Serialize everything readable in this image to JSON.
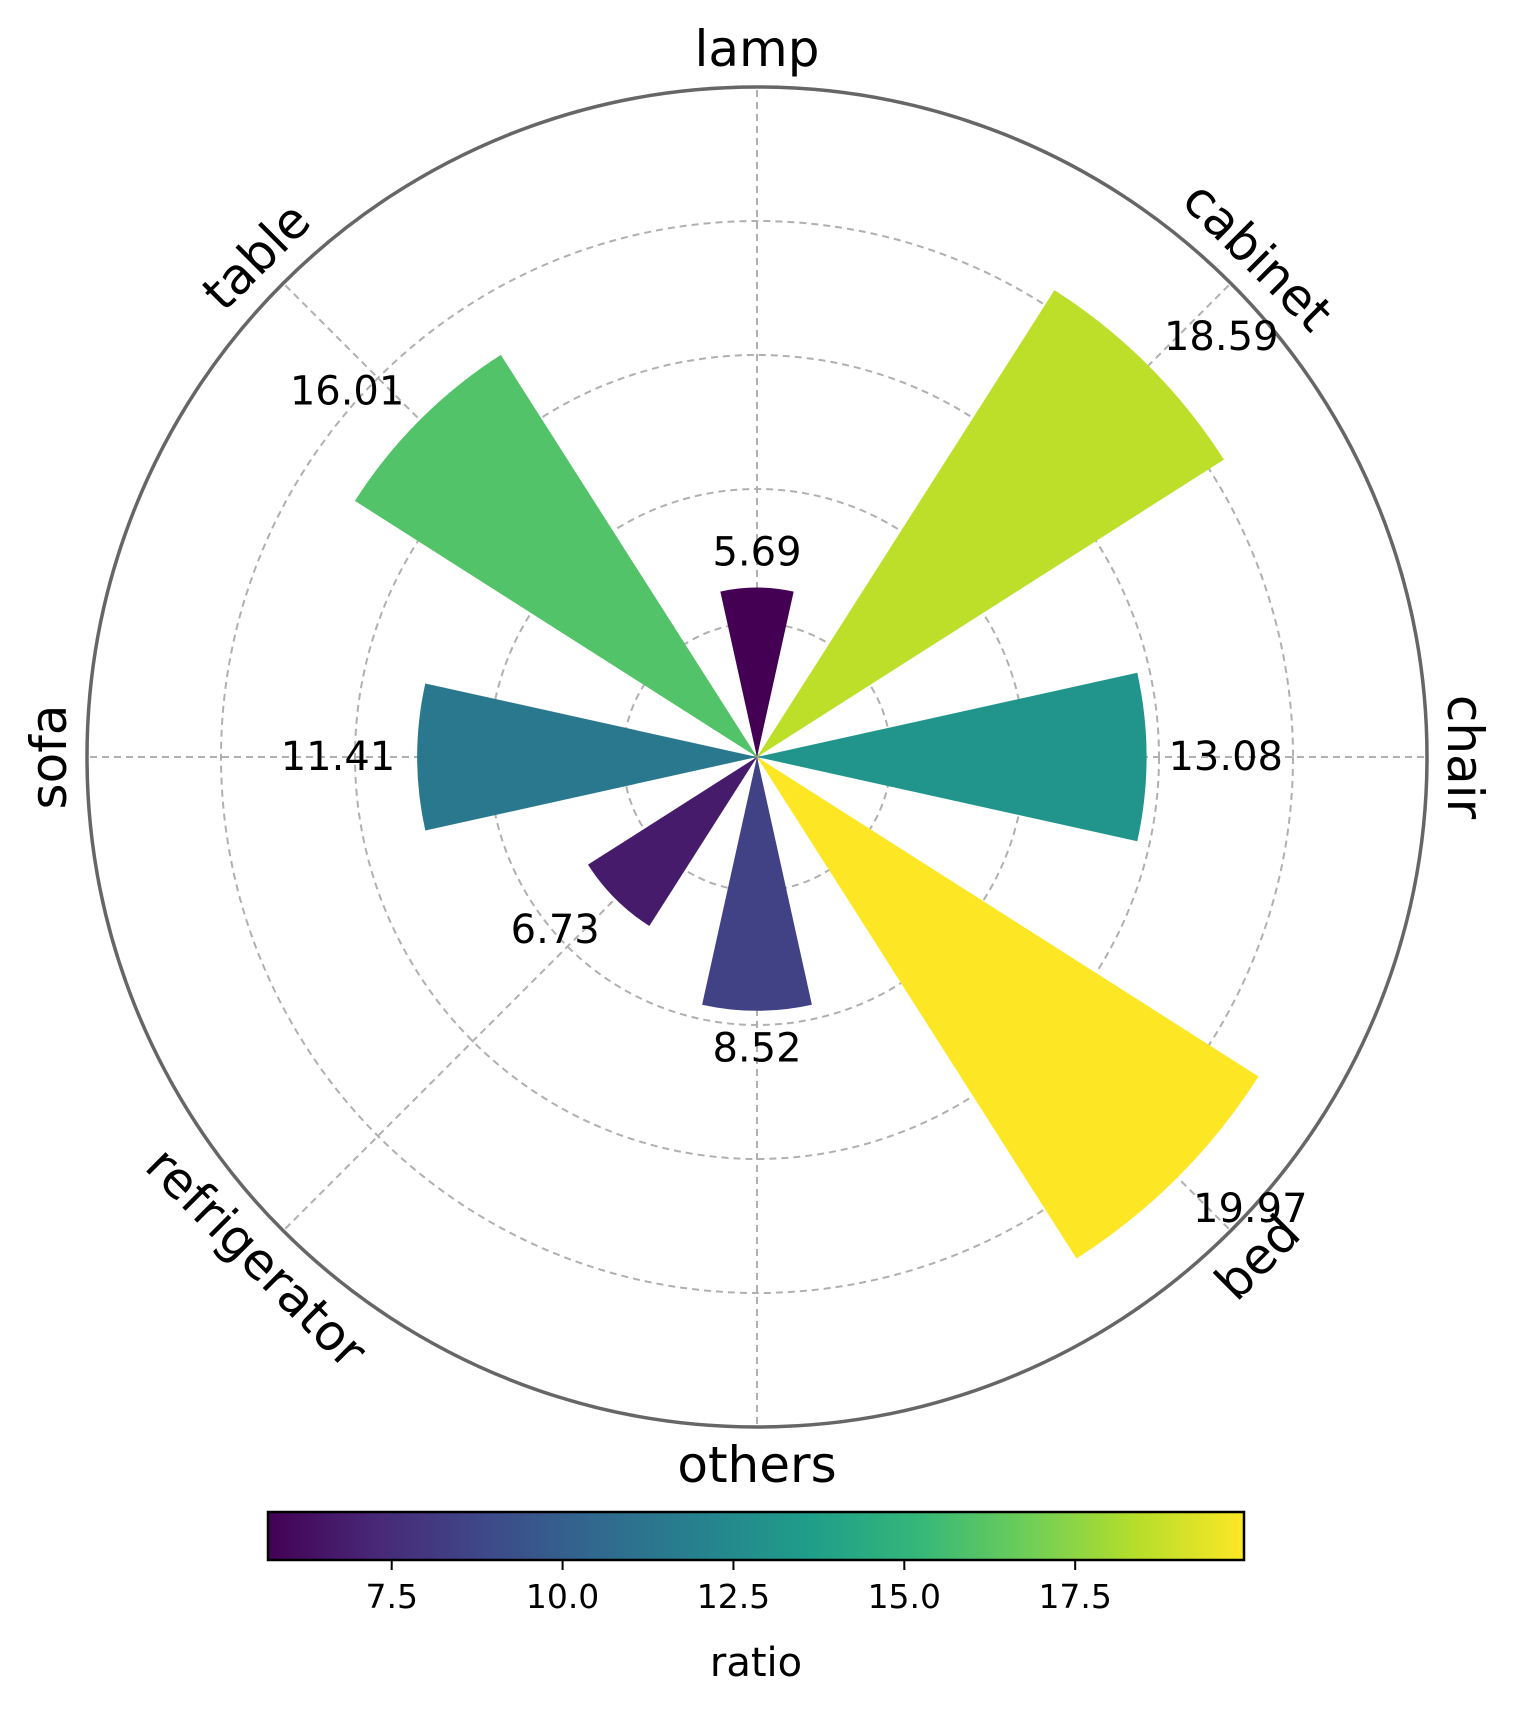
{
  "chart_data": {
    "type": "polar-bar",
    "categories": [
      "chair",
      "cabinet",
      "lamp",
      "table",
      "sofa",
      "refrigerator",
      "others",
      "bed"
    ],
    "values": [
      13.08,
      18.59,
      5.69,
      16.01,
      11.41,
      6.73,
      8.52,
      19.97
    ],
    "value_labels": [
      "13.08",
      "18.59",
      "5.69",
      "16.01",
      "11.41",
      "6.73",
      "8.52",
      "19.97"
    ],
    "bar_width_deg": 25,
    "radial_max": 22.5,
    "radial_grid": [
      4.5,
      9,
      13.5,
      18
    ],
    "grid": true,
    "colormap": "viridis",
    "colorbar": {
      "label": "ratio",
      "range": [
        5.69,
        19.97
      ],
      "ticks": [
        7.5,
        10.0,
        12.5,
        15.0,
        17.5
      ],
      "tick_labels": [
        "7.5",
        "10.0",
        "12.5",
        "15.0",
        "17.5"
      ],
      "placement": "bottom"
    },
    "colors": {
      "viridis": [
        "#440154",
        "#482878",
        "#3e4989",
        "#31688e",
        "#26828e",
        "#1f9e89",
        "#35b779",
        "#6ece58",
        "#b5de2b",
        "#fde725"
      ],
      "frame": "#666666",
      "grid": "#b0b0b0"
    }
  }
}
